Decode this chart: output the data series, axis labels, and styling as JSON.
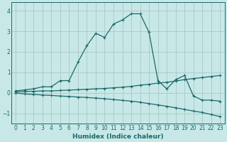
{
  "xlabel": "Humidex (Indice chaleur)",
  "background_color": "#c8e8e8",
  "grid_color": "#a8c8c8",
  "line_color": "#1a6868",
  "xlim": [
    -0.5,
    23.5
  ],
  "ylim": [
    -1.5,
    4.4
  ],
  "yticks": [
    -1,
    0,
    1,
    2,
    3,
    4
  ],
  "xticks": [
    0,
    1,
    2,
    3,
    4,
    5,
    6,
    7,
    8,
    9,
    10,
    11,
    12,
    13,
    14,
    15,
    16,
    17,
    18,
    19,
    20,
    21,
    22,
    23
  ],
  "series1_x": [
    0,
    1,
    2,
    3,
    4,
    5,
    6,
    7,
    8,
    9,
    10,
    11,
    12,
    13,
    14,
    15,
    16,
    17,
    18,
    19,
    20,
    21,
    22,
    23
  ],
  "series1_y": [
    0.1,
    0.15,
    0.2,
    0.3,
    0.3,
    0.6,
    0.6,
    1.5,
    2.3,
    2.9,
    2.7,
    3.35,
    3.55,
    3.85,
    3.85,
    2.95,
    0.6,
    0.2,
    0.65,
    0.85,
    -0.15,
    -0.35,
    -0.35,
    -0.4
  ],
  "series2_x": [
    0,
    1,
    2,
    3,
    4,
    5,
    6,
    7,
    8,
    9,
    10,
    11,
    12,
    13,
    14,
    15,
    16,
    17,
    18,
    19,
    20,
    21,
    22,
    23
  ],
  "series2_y": [
    0.05,
    0.07,
    0.08,
    0.1,
    0.1,
    0.12,
    0.14,
    0.16,
    0.18,
    0.2,
    0.22,
    0.25,
    0.28,
    0.32,
    0.38,
    0.42,
    0.48,
    0.52,
    0.58,
    0.65,
    0.7,
    0.75,
    0.8,
    0.85
  ],
  "series3_x": [
    0,
    1,
    2,
    3,
    4,
    5,
    6,
    7,
    8,
    9,
    10,
    11,
    12,
    13,
    14,
    15,
    16,
    17,
    18,
    19,
    20,
    21,
    22,
    23
  ],
  "series3_y": [
    0.0,
    -0.05,
    -0.07,
    -0.1,
    -0.12,
    -0.15,
    -0.17,
    -0.2,
    -0.22,
    -0.25,
    -0.28,
    -0.32,
    -0.36,
    -0.4,
    -0.45,
    -0.52,
    -0.58,
    -0.65,
    -0.72,
    -0.8,
    -0.88,
    -0.95,
    -1.05,
    -1.15
  ]
}
